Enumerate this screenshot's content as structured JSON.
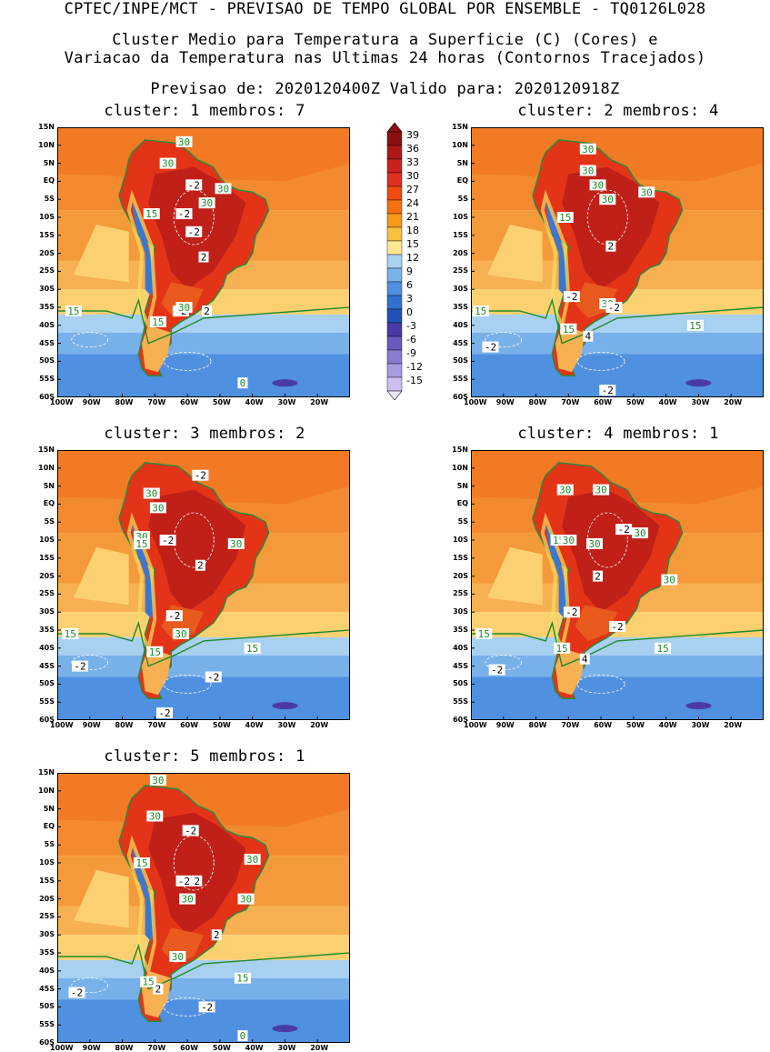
{
  "header": {
    "line1": "CPTEC/INPE/MCT - PREVISAO DE TEMPO GLOBAL POR ENSEMBLE - TQ0126L028",
    "line2": "Cluster Medio para Temperatura a Superficie (C) (Cores) e",
    "line3": "Variacao da Temperatura nas Ultimas 24 horas (Contornos Tracejados)",
    "line4": "Previsao de: 2020120400Z   Valido para: 2020120918Z"
  },
  "lat_labels": [
    "15N",
    "10N",
    "5N",
    "EQ",
    "5S",
    "10S",
    "15S",
    "20S",
    "25S",
    "30S",
    "35S",
    "40S",
    "45S",
    "50S",
    "55S",
    "60S"
  ],
  "lon_labels": [
    "100W",
    "90W",
    "80W",
    "70W",
    "60W",
    "50W",
    "40W",
    "30W",
    "20W"
  ],
  "colorbar": {
    "labels": [
      "39",
      "36",
      "33",
      "30",
      "27",
      "24",
      "21",
      "18",
      "15",
      "12",
      "9",
      "6",
      "3",
      "0",
      "-3",
      "-6",
      "-9",
      "-12",
      "-15"
    ],
    "colors": [
      "#8c1010",
      "#b01818",
      "#cc2020",
      "#e03020",
      "#f04a10",
      "#f57010",
      "#f89a18",
      "#fbc040",
      "#fde890",
      "#a8d0f0",
      "#78b4ec",
      "#5090e0",
      "#3070d0",
      "#2050b8",
      "#4a3aa8",
      "#6a5ac0",
      "#8a7ad0",
      "#aa9ae0",
      "#ccbff0"
    ]
  },
  "panels": [
    {
      "title": "cluster: 1   membros: 7",
      "labels": [
        "30",
        "30",
        "-2",
        "30",
        "30",
        "15",
        "-2",
        "-2",
        "2",
        "-2",
        "15",
        "30",
        "15",
        "0",
        "2"
      ]
    },
    {
      "title": "cluster: 2   membros: 4",
      "labels": [
        "30",
        "30",
        "30",
        "30",
        "15",
        "30",
        "2",
        "-2",
        "30",
        "-2",
        "15",
        "15",
        "-2",
        "4",
        "15",
        "-2"
      ]
    },
    {
      "title": "cluster: 3   membros: 2",
      "labels": [
        "-2",
        "30",
        "30",
        "30",
        "15",
        "-2",
        "30",
        "2",
        "-2",
        "30",
        "15",
        "15",
        "-2",
        "-2",
        "-2",
        "15"
      ]
    },
    {
      "title": "cluster: 4   membros: 1",
      "labels": [
        "30",
        "30",
        "-2",
        "30",
        "15",
        "30",
        "30",
        "2",
        "30",
        "-2",
        "-2",
        "15",
        "15",
        "-2",
        "4",
        "15"
      ]
    },
    {
      "title": "cluster: 5   membros: 1",
      "labels": [
        "30",
        "30",
        "-2",
        "30",
        "15",
        "-2",
        "2",
        "30",
        "30",
        "2",
        "30",
        "15",
        "15",
        "-2",
        "-2",
        "2",
        "0"
      ]
    }
  ]
}
